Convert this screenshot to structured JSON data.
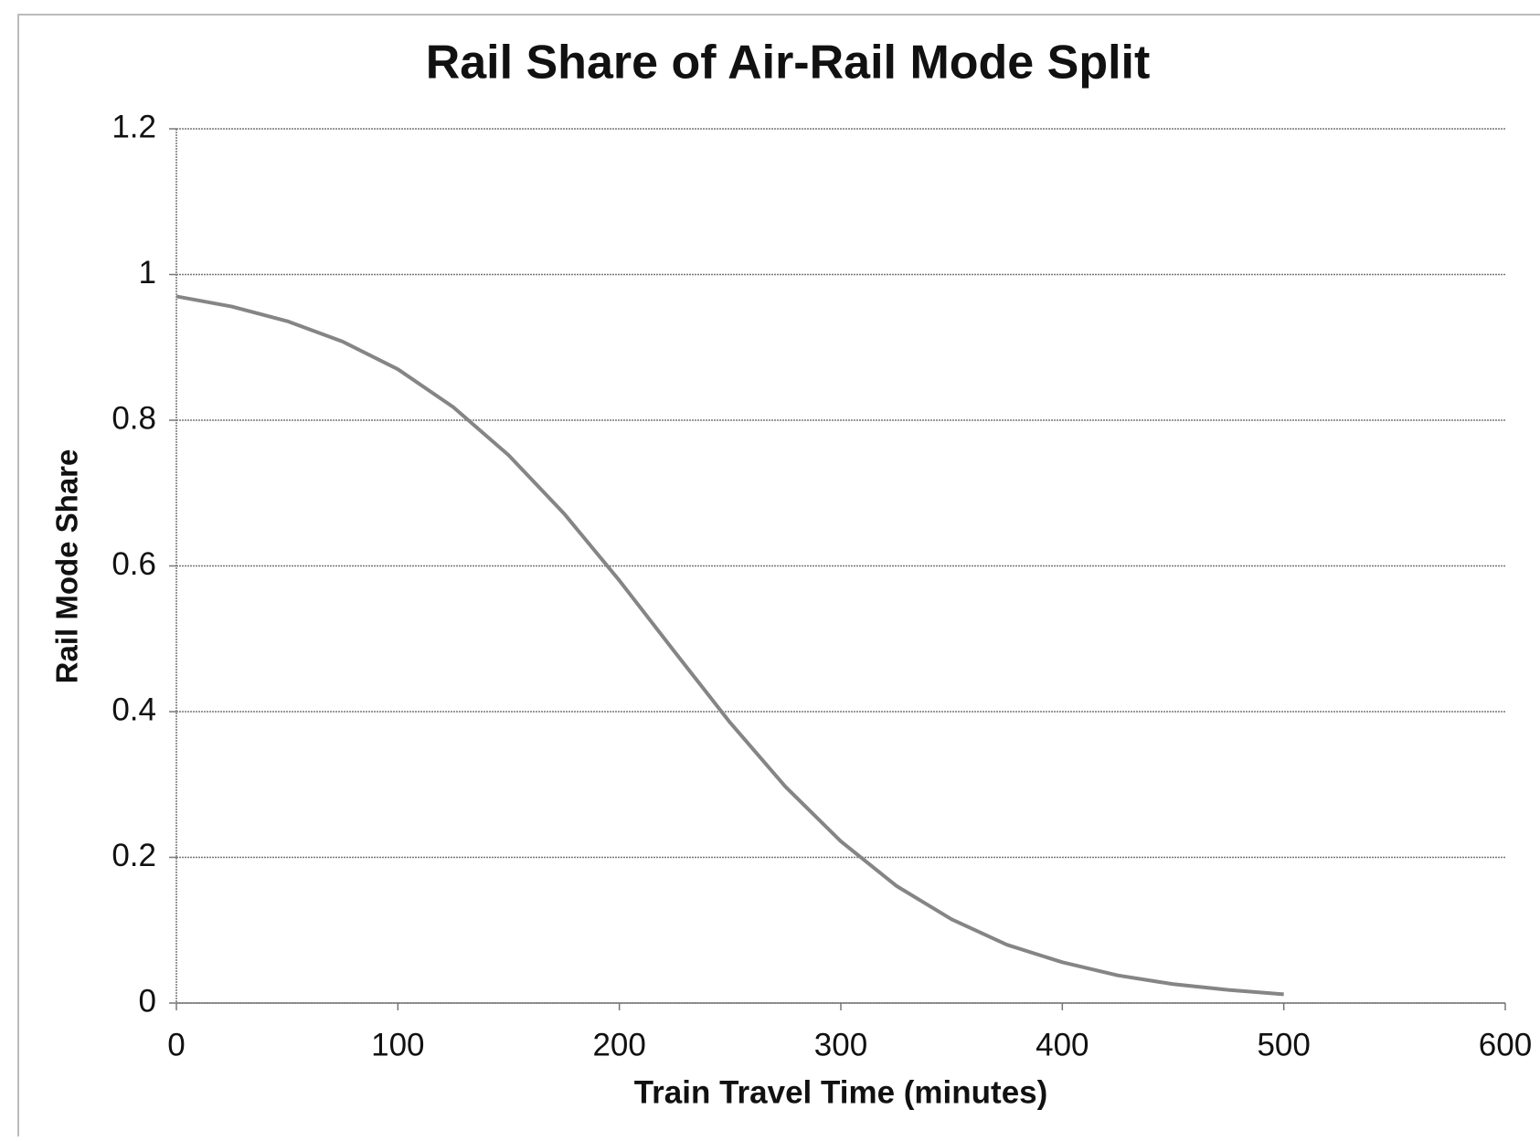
{
  "chart_data": {
    "type": "line",
    "title": "Rail Share of Air-Rail Mode Split",
    "x_label": "Train Travel Time (minutes)",
    "y_label": "Rail Mode Share",
    "x": [
      0,
      25,
      50,
      75,
      100,
      125,
      150,
      175,
      200,
      225,
      250,
      275,
      300,
      325,
      350,
      375,
      400,
      425,
      450,
      475,
      500
    ],
    "series": [
      {
        "name": "Rail Mode Share",
        "color": "#858585",
        "values": [
          0.97,
          0.956,
          0.936,
          0.908,
          0.87,
          0.818,
          0.752,
          0.672,
          0.58,
          0.482,
          0.385,
          0.297,
          0.222,
          0.161,
          0.115,
          0.08,
          0.056,
          0.038,
          0.026,
          0.018,
          0.012
        ]
      }
    ],
    "xlim": [
      0,
      600
    ],
    "xticks": [
      0,
      100,
      200,
      300,
      400,
      500,
      600
    ],
    "ylim": [
      0,
      1.2
    ],
    "yticks": [
      0,
      0.2,
      0.4,
      0.6,
      0.8,
      1,
      1.2
    ],
    "grid": true,
    "legend": false
  }
}
